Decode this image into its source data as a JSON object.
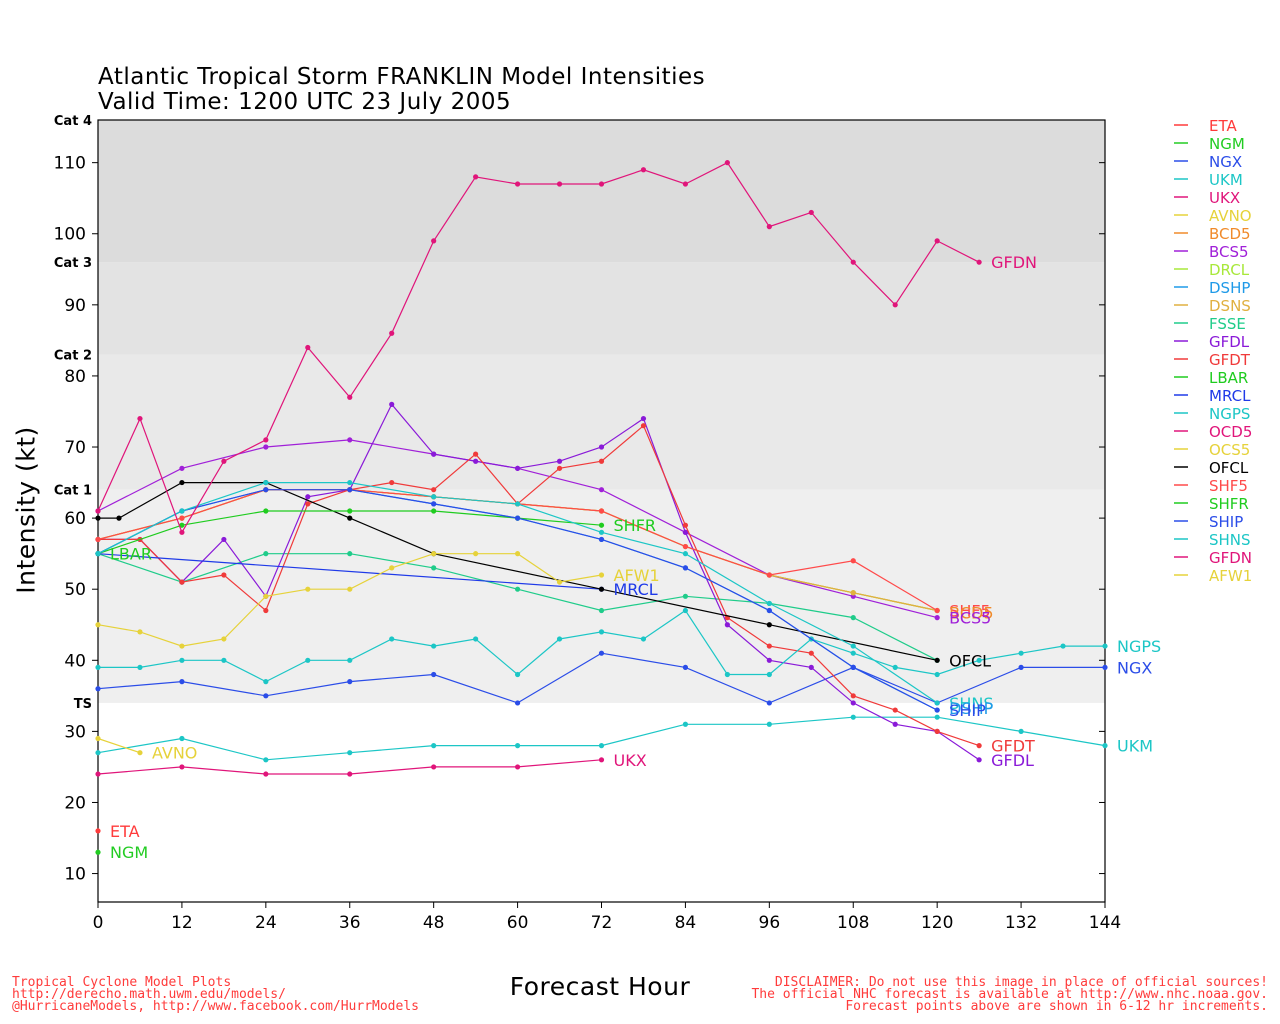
{
  "title": "Atlantic Tropical Storm FRANKLIN Model Intensities",
  "subtitle": "Valid Time: 1200 UTC 23 July 2005",
  "footer_left": [
    "Tropical Cyclone Model Plots",
    "http://derecho.math.uwm.edu/models/",
    "@HurricaneModels, http://www.facebook.com/HurrModels"
  ],
  "footer_right": [
    "DISCLAIMER: Do not use this image in place of official sources!",
    "The official NHC forecast is available at http://www.nhc.noaa.gov.",
    "Forecast points above are shown in 6-12 hr increments."
  ],
  "chart_data": {
    "type": "line",
    "xlabel": "Forecast Hour",
    "ylabel": "Intensity (kt)",
    "xlim": [
      0,
      144
    ],
    "ylim": [
      6,
      116
    ],
    "xticks": [
      0,
      12,
      24,
      36,
      48,
      60,
      72,
      84,
      96,
      108,
      120,
      132,
      144
    ],
    "yticks": [
      10,
      20,
      30,
      40,
      50,
      60,
      70,
      80,
      90,
      100,
      110
    ],
    "categories": [
      {
        "label": "TS",
        "from": 34,
        "to": 64
      },
      {
        "label": "Cat 1",
        "from": 64,
        "to": 83
      },
      {
        "label": "Cat 2",
        "from": 83,
        "to": 96
      },
      {
        "label": "Cat 3",
        "from": 96,
        "to": 116
      },
      {
        "label": "Cat 4",
        "from": 116,
        "to": 116
      }
    ],
    "category_colors": [
      "#efefef",
      "#e9e9e9",
      "#e3e3e3",
      "#dcdcdc"
    ],
    "legend_position": "right",
    "series": [
      {
        "name": "ETA",
        "color": "#ff3b3b",
        "x": [
          0
        ],
        "y": [
          16
        ],
        "label": "ETA"
      },
      {
        "name": "NGM",
        "color": "#22cc22",
        "x": [
          0
        ],
        "y": [
          13
        ],
        "label": "NGM"
      },
      {
        "name": "NGX",
        "color": "#2b4de8",
        "x": [
          0,
          12,
          24,
          36,
          48,
          60,
          72,
          84,
          96,
          108,
          120,
          132,
          144
        ],
        "y": [
          36,
          37,
          35,
          37,
          38,
          34,
          41,
          39,
          34,
          39,
          34,
          39,
          39
        ],
        "label": "NGX"
      },
      {
        "name": "UKM",
        "color": "#1cc6c6",
        "x": [
          0,
          12,
          24,
          36,
          48,
          60,
          72,
          84,
          96,
          108,
          120,
          132,
          144
        ],
        "y": [
          27,
          29,
          26,
          27,
          28,
          28,
          28,
          31,
          31,
          32,
          32,
          30,
          28
        ],
        "label": "UKM"
      },
      {
        "name": "UKX",
        "color": "#e0157a",
        "x": [
          0,
          12,
          24,
          36,
          48,
          60,
          72
        ],
        "y": [
          24,
          25,
          24,
          24,
          25,
          25,
          26
        ],
        "label": "UKX"
      },
      {
        "name": "AVNO",
        "color": "#e6d23a",
        "x": [
          0,
          6
        ],
        "y": [
          29,
          27
        ],
        "label": "AVNO"
      },
      {
        "name": "BCD5",
        "color": "#f08a2a",
        "x": [
          0,
          12,
          24,
          36,
          48,
          60,
          72,
          84,
          96,
          108,
          120
        ],
        "y": [
          57,
          60,
          64,
          64,
          63,
          62,
          61,
          56,
          52,
          49.5,
          47
        ],
        "label": "BCD5"
      },
      {
        "name": "BCS5",
        "color": "#a020d8",
        "x": [
          0,
          12,
          24,
          36,
          48,
          60,
          72,
          84,
          96,
          108,
          120
        ],
        "y": [
          61,
          67,
          70,
          71,
          69,
          67,
          64,
          58,
          52,
          49,
          46
        ],
        "label": "BCS5"
      },
      {
        "name": "DRCL",
        "color": "#a8e83a",
        "x": [
          0,
          12,
          24,
          36,
          48,
          60,
          72,
          84,
          96,
          108,
          120
        ],
        "y": [
          57,
          60,
          64,
          64,
          63,
          62,
          61,
          56,
          52,
          49.5,
          47
        ],
        "label": ""
      },
      {
        "name": "DSHP",
        "color": "#1f9ae8",
        "x": [
          0,
          12,
          24,
          36,
          48,
          60,
          72,
          84,
          96,
          108,
          120
        ],
        "y": [
          55,
          61,
          64,
          64,
          62,
          60,
          57,
          53,
          47,
          39,
          33
        ],
        "label": "DSHP"
      },
      {
        "name": "DSNS",
        "color": "#e0b040",
        "x": [
          0,
          12,
          24,
          36,
          48,
          60,
          72,
          84,
          96,
          108,
          120
        ],
        "y": [
          57,
          60,
          64,
          64,
          63,
          62,
          61,
          56,
          52,
          49.5,
          47
        ],
        "label": ""
      },
      {
        "name": "FSSE",
        "color": "#1fcc8a",
        "x": [
          0,
          12,
          24,
          36,
          48,
          60,
          72,
          84,
          96,
          108,
          120
        ],
        "y": [
          55,
          51,
          55,
          55,
          53,
          50,
          47,
          49,
          48,
          46,
          40
        ],
        "label": "FSSE"
      },
      {
        "name": "GFDL",
        "color": "#8a1ad8",
        "x": [
          0,
          6,
          12,
          18,
          24,
          30,
          36,
          42,
          48,
          54,
          60,
          66,
          72,
          78,
          84,
          90,
          96,
          102,
          108,
          114,
          120,
          126
        ],
        "y": [
          57,
          57,
          51,
          57,
          49,
          63,
          64,
          76,
          69,
          68,
          67,
          68,
          70,
          74,
          58,
          45,
          40,
          39,
          34,
          31,
          30,
          26
        ],
        "label": "GFDL"
      },
      {
        "name": "GFDT",
        "color": "#f03a3a",
        "x": [
          0,
          6,
          12,
          18,
          24,
          30,
          36,
          42,
          48,
          54,
          60,
          66,
          72,
          78,
          84,
          90,
          96,
          102,
          108,
          114,
          120,
          126
        ],
        "y": [
          57,
          57,
          51,
          52,
          47,
          62,
          64,
          65,
          64,
          69,
          62,
          67,
          68,
          73,
          59,
          46,
          42,
          41,
          35,
          33,
          30,
          28
        ],
        "label": "GFDT"
      },
      {
        "name": "LBAR",
        "color": "#1fcc1f",
        "x": [
          0
        ],
        "y": [
          55
        ],
        "label": "LBAR"
      },
      {
        "name": "MRCL",
        "color": "#1f3ae8",
        "x": [
          0,
          72
        ],
        "y": [
          55,
          50
        ],
        "label": "MRCL"
      },
      {
        "name": "NGPS",
        "color": "#1cc6c6",
        "x": [
          0,
          6,
          12,
          18,
          24,
          30,
          36,
          42,
          48,
          54,
          60,
          66,
          72,
          78,
          84,
          90,
          96,
          102,
          108,
          114,
          120,
          126,
          132,
          138,
          144
        ],
        "y": [
          39,
          39,
          40,
          40,
          37,
          40,
          40,
          43,
          42,
          43,
          38,
          43,
          44,
          43,
          47,
          38,
          38,
          43,
          41,
          39,
          38,
          40,
          41,
          42,
          42
        ],
        "label": "NGPS"
      },
      {
        "name": "OCD5",
        "color": "#e0157a",
        "x": [],
        "y": [],
        "label": ""
      },
      {
        "name": "OCS5",
        "color": "#e6d23a",
        "x": [],
        "y": [],
        "label": ""
      },
      {
        "name": "OFCL",
        "color": "#000000",
        "x": [
          0,
          3,
          12,
          24,
          36,
          48,
          72,
          96,
          120
        ],
        "y": [
          60,
          60,
          65,
          65,
          60,
          55,
          50,
          45,
          40
        ],
        "label": "OFCL"
      },
      {
        "name": "SHF5",
        "color": "#ff4a4a",
        "x": [
          0,
          12,
          24,
          36,
          48,
          60,
          72,
          84,
          96,
          108,
          120
        ],
        "y": [
          57,
          60,
          64,
          64,
          63,
          62,
          61,
          56,
          52,
          54,
          47
        ],
        "label": "SHF5"
      },
      {
        "name": "SHFR",
        "color": "#1fcc1f",
        "x": [
          0,
          12,
          24,
          36,
          48,
          60,
          72
        ],
        "y": [
          55,
          59,
          61,
          61,
          61,
          60,
          59
        ],
        "label": "SHFR"
      },
      {
        "name": "SHIP",
        "color": "#2b4de8",
        "x": [
          0,
          12,
          24,
          36,
          48,
          60,
          72,
          84,
          96,
          108,
          120
        ],
        "y": [
          55,
          61,
          64,
          64,
          62,
          60,
          57,
          53,
          47,
          39,
          33
        ],
        "label": "SHIP"
      },
      {
        "name": "SHNS",
        "color": "#1cc6c6",
        "x": [
          0,
          12,
          24,
          36,
          48,
          60,
          72,
          84,
          96,
          108,
          120
        ],
        "y": [
          55,
          61,
          65,
          65,
          63,
          62,
          58,
          55,
          48,
          42,
          34
        ],
        "label": "SHNS"
      },
      {
        "name": "GFDN",
        "color": "#e0157a",
        "x": [
          0,
          6,
          12,
          18,
          24,
          30,
          36,
          42,
          48,
          54,
          60,
          66,
          72,
          78,
          84,
          90,
          96,
          102,
          108,
          114,
          120,
          126
        ],
        "y": [
          61,
          74,
          58,
          68,
          71,
          84,
          77,
          86,
          99,
          108,
          107,
          107,
          107,
          109,
          107,
          110,
          101,
          103,
          96,
          90,
          99,
          96
        ],
        "label": "GFDN"
      },
      {
        "name": "AFW1",
        "color": "#e6d23a",
        "x": [
          0,
          6,
          12,
          18,
          24,
          30,
          36,
          42,
          48,
          54,
          60,
          66,
          72
        ],
        "y": [
          45,
          44,
          42,
          43,
          49,
          50,
          50,
          53,
          55,
          55,
          55,
          51,
          52
        ],
        "label": "AFW1"
      }
    ],
    "end_labels": [
      {
        "text": "ETA",
        "color": "#ff3b3b",
        "x": 0,
        "y": 16
      },
      {
        "text": "NGM",
        "color": "#22cc22",
        "x": 0,
        "y": 13
      },
      {
        "text": "LBAR",
        "color": "#1fcc1f",
        "x": 0,
        "y": 55
      },
      {
        "text": "AVNO",
        "color": "#e6d23a",
        "x": 6,
        "y": 27
      },
      {
        "text": "UKX",
        "color": "#e0157a",
        "x": 72,
        "y": 26
      },
      {
        "text": "SHFR",
        "color": "#1fcc1f",
        "x": 72,
        "y": 59
      },
      {
        "text": "AFW1",
        "color": "#e6d23a",
        "x": 72,
        "y": 52
      },
      {
        "text": "MRCL",
        "color": "#1f3ae8",
        "x": 72,
        "y": 50
      },
      {
        "text": "SHF5",
        "color": "#ff4a4a",
        "x": 120,
        "y": 47
      },
      {
        "text": "BCD5",
        "color": "#f08a2a",
        "x": 120,
        "y": 46.7
      },
      {
        "text": "BCS5",
        "color": "#a020d8",
        "x": 120,
        "y": 46
      },
      {
        "text": "OFCL",
        "color": "#000000",
        "x": 120,
        "y": 40
      },
      {
        "text": "SHNS",
        "color": "#1cc6c6",
        "x": 120,
        "y": 34
      },
      {
        "text": "DSHP",
        "color": "#1f9ae8",
        "x": 120,
        "y": 33.3
      },
      {
        "text": "SHIP",
        "color": "#2b4de8",
        "x": 120,
        "y": 33
      },
      {
        "text": "GFDN",
        "color": "#e0157a",
        "x": 126,
        "y": 96
      },
      {
        "text": "GFDT",
        "color": "#f03a3a",
        "x": 126,
        "y": 28
      },
      {
        "text": "GFDL",
        "color": "#8a1ad8",
        "x": 126,
        "y": 26
      },
      {
        "text": "NGPS",
        "color": "#1cc6c6",
        "x": 144,
        "y": 42
      },
      {
        "text": "NGX",
        "color": "#2b4de8",
        "x": 144,
        "y": 39
      },
      {
        "text": "UKM",
        "color": "#1cc6c6",
        "x": 144,
        "y": 28
      }
    ]
  }
}
